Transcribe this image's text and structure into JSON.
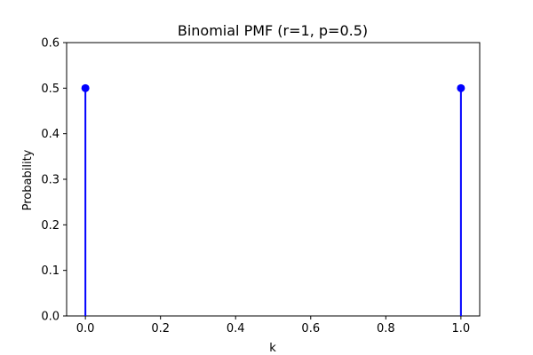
{
  "chart_data": {
    "type": "stem",
    "title": "Binomial PMF (r=1, p=0.5)",
    "xlabel": "k",
    "ylabel": "Probability",
    "x": [
      0.0,
      1.0
    ],
    "y": [
      0.5,
      0.5
    ],
    "xlim": [
      -0.05,
      1.05
    ],
    "ylim": [
      0.0,
      0.6
    ],
    "xticks": [
      0.0,
      0.2,
      0.4,
      0.6,
      0.8,
      1.0
    ],
    "xtick_labels": [
      "0.0",
      "0.2",
      "0.4",
      "0.6",
      "0.8",
      "1.0"
    ],
    "yticks": [
      0.0,
      0.1,
      0.2,
      0.3,
      0.4,
      0.5,
      0.6
    ],
    "ytick_labels": [
      "0.0",
      "0.1",
      "0.2",
      "0.3",
      "0.4",
      "0.5",
      "0.6"
    ],
    "grid": false,
    "colors": {
      "stem": "#0000ff",
      "marker": "#0000ff",
      "axes": "#000000"
    }
  }
}
